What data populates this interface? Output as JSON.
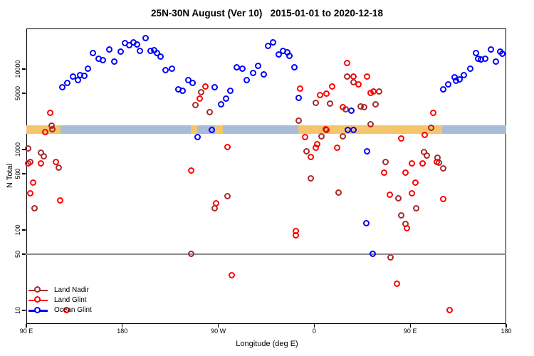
{
  "title": "25N-30N August (Ver 10)   2015-01-01 to 2020-12-18",
  "chart_data": {
    "type": "scatter",
    "xlabel": "Longitude (deg E)",
    "ylabel": "N Total",
    "x_axis": {
      "range": [
        90,
        540
      ],
      "ticks": [
        90,
        180,
        270,
        360,
        450,
        540
      ],
      "labels": [
        "90 E",
        "180",
        "90 W",
        "0",
        "90 E",
        "180"
      ]
    },
    "y_axis": {
      "scale": "log10",
      "ticks": [
        10,
        50,
        100,
        500,
        1000,
        5000,
        10000
      ],
      "labels": [
        "10",
        "50",
        "100",
        "500",
        "1000",
        "5000",
        "10000"
      ]
    },
    "reference_line": {
      "y": 50,
      "color": "#8a8a8a"
    },
    "surface_band": {
      "value_from": 1550,
      "value_to": 2000,
      "colors": {
        "land": "#F5C56C",
        "ocean": "#A9BDD9"
      },
      "segments": [
        {
          "from": 90,
          "to": 122,
          "type": "land"
        },
        {
          "from": 122,
          "to": 244,
          "type": "ocean"
        },
        {
          "from": 244,
          "to": 250,
          "type": "land"
        },
        {
          "from": 250,
          "to": 267,
          "type": "ocean"
        },
        {
          "from": 267,
          "to": 274,
          "type": "land"
        },
        {
          "from": 274,
          "to": 345,
          "type": "ocean"
        },
        {
          "from": 345,
          "to": 480,
          "type": "land"
        },
        {
          "from": 480,
          "to": 540,
          "type": "ocean"
        }
      ]
    },
    "legend": {
      "position": "bottom-left",
      "entries": [
        "Land Nadir",
        "Land Glint",
        "Ocean Glint"
      ]
    },
    "series": [
      {
        "name": "Land Nadir",
        "color": "#A52A2A",
        "points": [
          [
            92,
            1020
          ],
          [
            94,
            690
          ],
          [
            98,
            185
          ],
          [
            104,
            900
          ],
          [
            107,
            810
          ],
          [
            114,
            1950
          ],
          [
            115,
            1760
          ],
          [
            121,
            590
          ],
          [
            245,
            50
          ],
          [
            249,
            3500
          ],
          [
            254,
            5100
          ],
          [
            262,
            2900
          ],
          [
            267,
            185
          ],
          [
            279,
            260
          ],
          [
            346,
            2260
          ],
          [
            353,
            930
          ],
          [
            357,
            435
          ],
          [
            362,
            3760
          ],
          [
            367,
            1430
          ],
          [
            372,
            1720
          ],
          [
            375,
            3700
          ],
          [
            383,
            290
          ],
          [
            387,
            1430
          ],
          [
            390,
            3150
          ],
          [
            391,
            8000
          ],
          [
            397,
            6800
          ],
          [
            404,
            3400
          ],
          [
            407,
            3300
          ],
          [
            413,
            2040
          ],
          [
            418,
            3600
          ],
          [
            421,
            5200
          ],
          [
            427,
            690
          ],
          [
            432,
            45
          ],
          [
            439,
            245
          ],
          [
            442,
            150
          ],
          [
            446,
            118
          ],
          [
            456,
            185
          ],
          [
            463,
            920
          ],
          [
            466,
            830
          ],
          [
            470,
            1850
          ],
          [
            476,
            775
          ],
          [
            477,
            680
          ],
          [
            481,
            580
          ]
        ]
      },
      {
        "name": "Land Glint",
        "color": "#FF0000",
        "points": [
          [
            92,
            660
          ],
          [
            94,
            280
          ],
          [
            97,
            380
          ],
          [
            104,
            660
          ],
          [
            108,
            1620
          ],
          [
            113,
            2800
          ],
          [
            118,
            690
          ],
          [
            122,
            230
          ],
          [
            128,
            10
          ],
          [
            245,
            540
          ],
          [
            253,
            4200
          ],
          [
            258,
            6000
          ],
          [
            268,
            210
          ],
          [
            279,
            1070
          ],
          [
            283,
            27
          ],
          [
            343,
            95
          ],
          [
            343,
            85
          ],
          [
            347,
            5600
          ],
          [
            352,
            1400
          ],
          [
            357,
            800
          ],
          [
            362,
            1050
          ],
          [
            363,
            1150
          ],
          [
            366,
            4700
          ],
          [
            371,
            1770
          ],
          [
            372,
            4900
          ],
          [
            377,
            6000
          ],
          [
            382,
            1040
          ],
          [
            387,
            3300
          ],
          [
            391,
            11800
          ],
          [
            397,
            8000
          ],
          [
            402,
            6400
          ],
          [
            410,
            8000
          ],
          [
            413,
            5000
          ],
          [
            416,
            5200
          ],
          [
            426,
            510
          ],
          [
            431,
            270
          ],
          [
            438,
            21
          ],
          [
            442,
            1350
          ],
          [
            446,
            510
          ],
          [
            447,
            104
          ],
          [
            452,
            660
          ],
          [
            452,
            280
          ],
          [
            455,
            380
          ],
          [
            462,
            660
          ],
          [
            464,
            1500
          ],
          [
            472,
            2800
          ],
          [
            475,
            690
          ],
          [
            481,
            240
          ],
          [
            487,
            10
          ]
        ]
      },
      {
        "name": "Ocean Glint",
        "color": "#0000FF",
        "points": [
          [
            124,
            5900
          ],
          [
            129,
            6600
          ],
          [
            134,
            8000
          ],
          [
            139,
            7200
          ],
          [
            141,
            8300
          ],
          [
            145,
            8200
          ],
          [
            148,
            9900
          ],
          [
            153,
            15700
          ],
          [
            158,
            13300
          ],
          [
            162,
            12800
          ],
          [
            168,
            17400
          ],
          [
            173,
            12300
          ],
          [
            179,
            16200
          ],
          [
            183,
            20900
          ],
          [
            187,
            19600
          ],
          [
            191,
            21400
          ],
          [
            194,
            20000
          ],
          [
            197,
            16600
          ],
          [
            202,
            24100
          ],
          [
            207,
            16700
          ],
          [
            210,
            16900
          ],
          [
            213,
            15700
          ],
          [
            216,
            14200
          ],
          [
            221,
            9500
          ],
          [
            227,
            10000
          ],
          [
            233,
            5500
          ],
          [
            237,
            5300
          ],
          [
            242,
            7200
          ],
          [
            246,
            6600
          ],
          [
            251,
            1410
          ],
          [
            264,
            1730
          ],
          [
            267,
            5900
          ],
          [
            273,
            3600
          ],
          [
            278,
            4200
          ],
          [
            282,
            5300
          ],
          [
            288,
            10400
          ],
          [
            293,
            9900
          ],
          [
            297,
            7200
          ],
          [
            303,
            8800
          ],
          [
            308,
            10900
          ],
          [
            313,
            8500
          ],
          [
            317,
            19200
          ],
          [
            322,
            21400
          ],
          [
            327,
            15000
          ],
          [
            331,
            16600
          ],
          [
            335,
            15900
          ],
          [
            337,
            14400
          ],
          [
            342,
            10400
          ],
          [
            346,
            4350
          ],
          [
            392,
            1740
          ],
          [
            395,
            3000
          ],
          [
            397,
            1720
          ],
          [
            409,
            120
          ],
          [
            410,
            930
          ],
          [
            415,
            50
          ],
          [
            481,
            5500
          ],
          [
            486,
            6400
          ],
          [
            492,
            7800
          ],
          [
            493,
            7100
          ],
          [
            497,
            7400
          ],
          [
            501,
            8300
          ],
          [
            507,
            10000
          ],
          [
            512,
            15700
          ],
          [
            514,
            13300
          ],
          [
            517,
            13000
          ],
          [
            521,
            13300
          ],
          [
            526,
            17400
          ],
          [
            531,
            12200
          ],
          [
            535,
            16400
          ],
          [
            537,
            15400
          ]
        ]
      }
    ]
  }
}
